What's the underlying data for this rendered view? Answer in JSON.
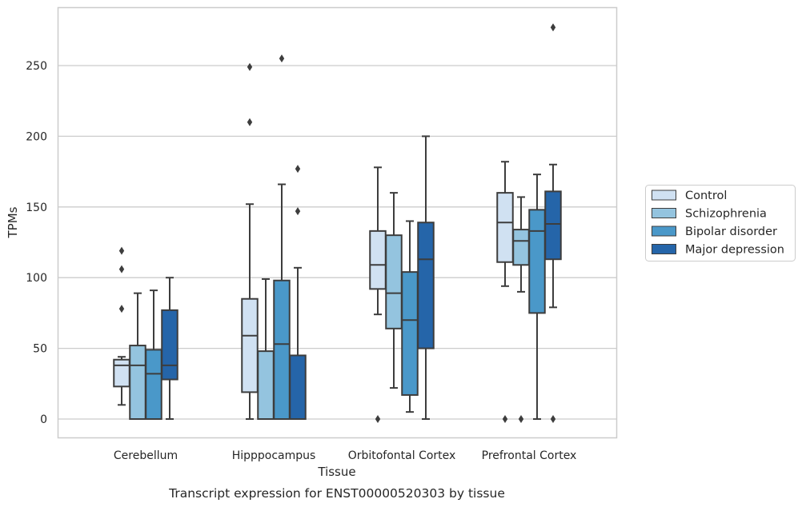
{
  "caption": "Transcript expression for ENST00000520303 by tissue",
  "chart_data": {
    "type": "box",
    "xlabel": "Tissue",
    "ylabel": "TPMs",
    "ylim": [
      -13,
      291
    ],
    "yticks": [
      0,
      50,
      100,
      150,
      200,
      250
    ],
    "grid": "horizontal",
    "legend_position": "right",
    "categories": [
      "Cerebellum",
      "Hipppocampus",
      "Orbitofontal Cortex",
      "Prefrontal Cortex"
    ],
    "series": [
      {
        "name": "Control",
        "color": "#d0e1f2",
        "boxes": [
          {
            "whisker_low": 10,
            "q1": 23,
            "median": 38,
            "q3": 42,
            "whisker_high": 44,
            "outliers": [
              78,
              106,
              119
            ]
          },
          {
            "whisker_low": 0,
            "q1": 19,
            "median": 59,
            "q3": 85,
            "whisker_high": 152,
            "outliers": [
              210,
              249
            ]
          },
          {
            "whisker_low": 74,
            "q1": 92,
            "median": 109,
            "q3": 133,
            "whisker_high": 178,
            "outliers": [
              0
            ]
          },
          {
            "whisker_low": 94,
            "q1": 111,
            "median": 139,
            "q3": 160,
            "whisker_high": 182,
            "outliers": [
              0
            ]
          }
        ]
      },
      {
        "name": "Schizophrenia",
        "color": "#94c4df",
        "boxes": [
          {
            "whisker_low": 0,
            "q1": 0,
            "median": 38,
            "q3": 52,
            "whisker_high": 89,
            "outliers": []
          },
          {
            "whisker_low": 0,
            "q1": 0,
            "median": 0,
            "q3": 48,
            "whisker_high": 99,
            "outliers": []
          },
          {
            "whisker_low": 22,
            "q1": 64,
            "median": 89,
            "q3": 130,
            "whisker_high": 160,
            "outliers": []
          },
          {
            "whisker_low": 90,
            "q1": 109,
            "median": 126,
            "q3": 134,
            "whisker_high": 157,
            "outliers": [
              0
            ]
          }
        ]
      },
      {
        "name": "Bipolar disorder",
        "color": "#4a98c9",
        "boxes": [
          {
            "whisker_low": 0,
            "q1": 0,
            "median": 32,
            "q3": 49,
            "whisker_high": 91,
            "outliers": []
          },
          {
            "whisker_low": 0,
            "q1": 0,
            "median": 53,
            "q3": 98,
            "whisker_high": 166,
            "outliers": [
              255
            ]
          },
          {
            "whisker_low": 5,
            "q1": 17,
            "median": 70,
            "q3": 104,
            "whisker_high": 140,
            "outliers": []
          },
          {
            "whisker_low": 0,
            "q1": 75,
            "median": 133,
            "q3": 148,
            "whisker_high": 173,
            "outliers": []
          }
        ]
      },
      {
        "name": "Major depression",
        "color": "#2565a9",
        "boxes": [
          {
            "whisker_low": 0,
            "q1": 28,
            "median": 38,
            "q3": 77,
            "whisker_high": 100,
            "outliers": []
          },
          {
            "whisker_low": 0,
            "q1": 0,
            "median": 0,
            "q3": 45,
            "whisker_high": 107,
            "outliers": [
              147,
              177
            ]
          },
          {
            "whisker_low": 0,
            "q1": 50,
            "median": 113,
            "q3": 139,
            "whisker_high": 200,
            "outliers": []
          },
          {
            "whisker_low": 79,
            "q1": 113,
            "median": 138,
            "q3": 161,
            "whisker_high": 180,
            "outliers": [
              0,
              277
            ]
          }
        ]
      }
    ]
  }
}
